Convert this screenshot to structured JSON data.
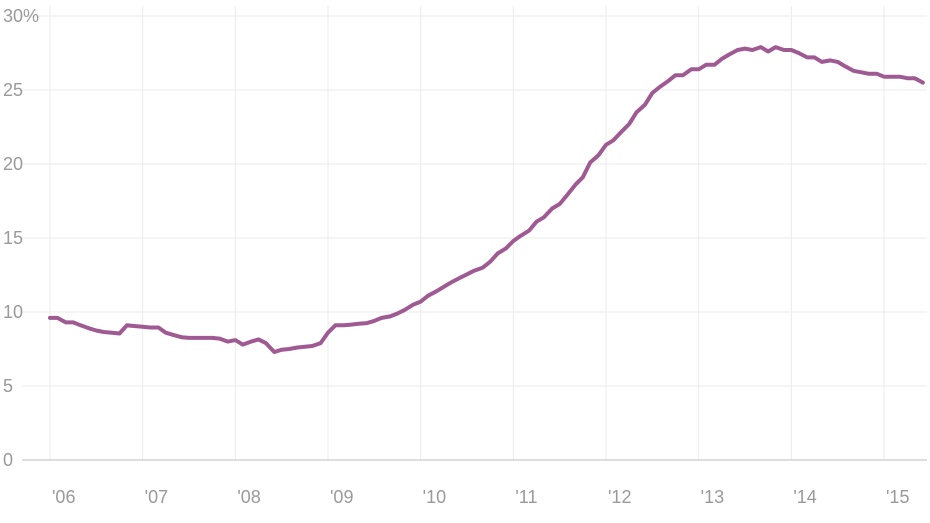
{
  "chart_data": {
    "type": "line",
    "title": "",
    "xlabel": "",
    "ylabel": "",
    "ylim": [
      0,
      30
    ],
    "yticks": [
      0,
      5,
      10,
      15,
      20,
      25,
      30
    ],
    "ytick_labels": [
      "0",
      "5",
      "10",
      "15",
      "20",
      "25",
      "30%"
    ],
    "xlim": [
      2006,
      2015.28
    ],
    "xticks": [
      2006,
      2007,
      2008,
      2009,
      2010,
      2011,
      2012,
      2013,
      2014,
      2015
    ],
    "xtick_labels": [
      "'06",
      "'07",
      "'08",
      "'09",
      "'10",
      "'11",
      "'12",
      "'13",
      "'14",
      "'15"
    ],
    "grid": true,
    "series_color": "#a05a93",
    "series": [
      {
        "values": [
          [
            2006.0,
            9.6
          ],
          [
            2006.08,
            9.6
          ],
          [
            2006.17,
            9.3
          ],
          [
            2006.25,
            9.3
          ],
          [
            2006.33,
            9.1
          ],
          [
            2006.42,
            8.9
          ],
          [
            2006.5,
            8.75
          ],
          [
            2006.58,
            8.65
          ],
          [
            2006.67,
            8.6
          ],
          [
            2006.75,
            8.55
          ],
          [
            2006.83,
            9.1
          ],
          [
            2006.92,
            9.05
          ],
          [
            2007.0,
            9.0
          ],
          [
            2007.08,
            8.95
          ],
          [
            2007.17,
            8.95
          ],
          [
            2007.25,
            8.6
          ],
          [
            2007.33,
            8.45
          ],
          [
            2007.42,
            8.3
          ],
          [
            2007.5,
            8.25
          ],
          [
            2007.58,
            8.25
          ],
          [
            2007.67,
            8.25
          ],
          [
            2007.75,
            8.25
          ],
          [
            2007.83,
            8.2
          ],
          [
            2007.92,
            8.0
          ],
          [
            2008.0,
            8.1
          ],
          [
            2008.08,
            7.8
          ],
          [
            2008.17,
            8.0
          ],
          [
            2008.25,
            8.15
          ],
          [
            2008.33,
            7.9
          ],
          [
            2008.42,
            7.3
          ],
          [
            2008.5,
            7.45
          ],
          [
            2008.58,
            7.5
          ],
          [
            2008.67,
            7.6
          ],
          [
            2008.75,
            7.65
          ],
          [
            2008.83,
            7.7
          ],
          [
            2008.92,
            7.9
          ],
          [
            2009.0,
            8.6
          ],
          [
            2009.08,
            9.1
          ],
          [
            2009.17,
            9.1
          ],
          [
            2009.25,
            9.15
          ],
          [
            2009.33,
            9.2
          ],
          [
            2009.42,
            9.25
          ],
          [
            2009.5,
            9.4
          ],
          [
            2009.58,
            9.6
          ],
          [
            2009.67,
            9.7
          ],
          [
            2009.75,
            9.9
          ],
          [
            2009.83,
            10.15
          ],
          [
            2009.92,
            10.5
          ],
          [
            2010.0,
            10.7
          ],
          [
            2010.08,
            11.1
          ],
          [
            2010.17,
            11.4
          ],
          [
            2010.25,
            11.7
          ],
          [
            2010.33,
            12.0
          ],
          [
            2010.42,
            12.3
          ],
          [
            2010.5,
            12.55
          ],
          [
            2010.58,
            12.8
          ],
          [
            2010.67,
            13.0
          ],
          [
            2010.75,
            13.4
          ],
          [
            2010.83,
            13.95
          ],
          [
            2010.92,
            14.3
          ],
          [
            2011.0,
            14.8
          ],
          [
            2011.08,
            15.15
          ],
          [
            2011.17,
            15.5
          ],
          [
            2011.25,
            16.1
          ],
          [
            2011.33,
            16.4
          ],
          [
            2011.42,
            17.0
          ],
          [
            2011.5,
            17.3
          ],
          [
            2011.58,
            17.9
          ],
          [
            2011.67,
            18.6
          ],
          [
            2011.75,
            19.1
          ],
          [
            2011.83,
            20.1
          ],
          [
            2011.92,
            20.6
          ],
          [
            2012.0,
            21.3
          ],
          [
            2012.08,
            21.6
          ],
          [
            2012.17,
            22.2
          ],
          [
            2012.25,
            22.7
          ],
          [
            2012.33,
            23.5
          ],
          [
            2012.42,
            24.0
          ],
          [
            2012.5,
            24.8
          ],
          [
            2012.58,
            25.2
          ],
          [
            2012.67,
            25.6
          ],
          [
            2012.75,
            26.0
          ],
          [
            2012.83,
            26.0
          ],
          [
            2012.92,
            26.4
          ],
          [
            2013.0,
            26.4
          ],
          [
            2013.08,
            26.7
          ],
          [
            2013.17,
            26.7
          ],
          [
            2013.25,
            27.1
          ],
          [
            2013.33,
            27.4
          ],
          [
            2013.42,
            27.7
          ],
          [
            2013.5,
            27.8
          ],
          [
            2013.58,
            27.7
          ],
          [
            2013.67,
            27.9
          ],
          [
            2013.75,
            27.6
          ],
          [
            2013.83,
            27.9
          ],
          [
            2013.92,
            27.7
          ],
          [
            2014.0,
            27.7
          ],
          [
            2014.08,
            27.5
          ],
          [
            2014.17,
            27.2
          ],
          [
            2014.25,
            27.2
          ],
          [
            2014.33,
            26.9
          ],
          [
            2014.42,
            27.0
          ],
          [
            2014.5,
            26.9
          ],
          [
            2014.58,
            26.6
          ],
          [
            2014.67,
            26.3
          ],
          [
            2014.75,
            26.2
          ],
          [
            2014.83,
            26.1
          ],
          [
            2014.92,
            26.1
          ],
          [
            2015.0,
            25.9
          ],
          [
            2015.08,
            25.9
          ],
          [
            2015.17,
            25.9
          ],
          [
            2015.25,
            25.8
          ],
          [
            2015.33,
            25.8
          ],
          [
            2015.42,
            25.5
          ]
        ]
      }
    ]
  }
}
